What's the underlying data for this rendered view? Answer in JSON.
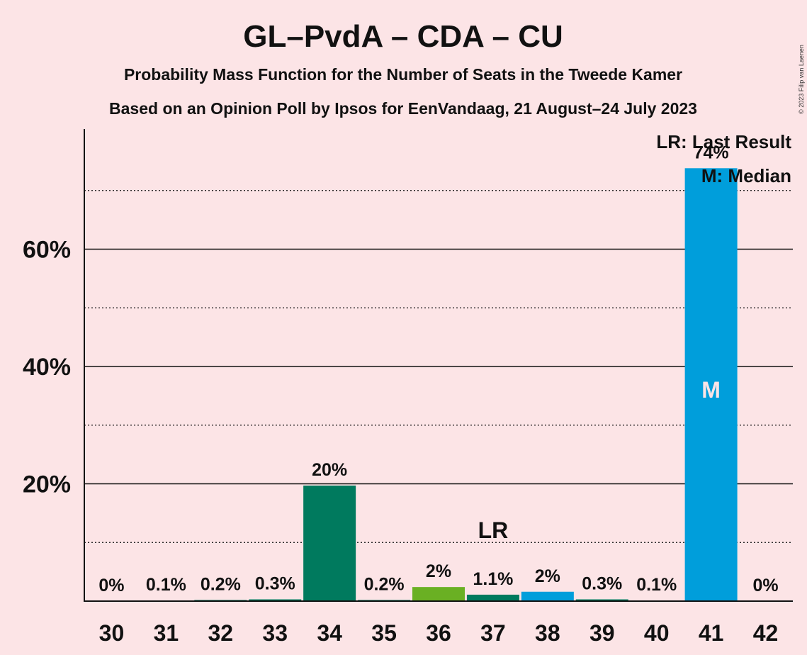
{
  "title": "GL–PvdA – CDA – CU",
  "subtitle1": "Probability Mass Function for the Number of Seats in the Tweede Kamer",
  "subtitle2": "Based on an Opinion Poll by Ipsos for EenVandaag, 21 August–24 July 2023",
  "copyright": "© 2023 Filip van Laenen",
  "legend": {
    "lr": "LR: Last Result",
    "m": "M: Median"
  },
  "markers": {
    "lr_label": "LR",
    "median_label": "M"
  },
  "colors": {
    "background": "#fce4e6",
    "gl_pvda": "#007a5e",
    "cda": "#6ab023",
    "cu": "#009edb"
  },
  "chart_data": {
    "type": "bar",
    "title": "GL–PvdA – CDA – CU",
    "xlabel": "",
    "ylabel": "",
    "ylim": [
      0,
      80
    ],
    "yticks": [
      20,
      40,
      60
    ],
    "ytick_labels": [
      "20%",
      "40%",
      "60%"
    ],
    "grid_minor": [
      10,
      30,
      50,
      70
    ],
    "categories": [
      "30",
      "31",
      "32",
      "33",
      "34",
      "35",
      "36",
      "37",
      "38",
      "39",
      "40",
      "41",
      "42"
    ],
    "values": [
      0,
      0.1,
      0.2,
      0.3,
      19.7,
      0.2,
      2.4,
      1.1,
      1.6,
      0.3,
      0.1,
      73.8,
      0
    ],
    "labels": [
      "0%",
      "0.1%",
      "0.2%",
      "0.3%",
      "20%",
      "0.2%",
      "2%",
      "1.1%",
      "2%",
      "0.3%",
      "0.1%",
      "74%",
      "0%"
    ],
    "bar_colors": [
      "#007a5e",
      "#007a5e",
      "#007a5e",
      "#007a5e",
      "#007a5e",
      "#007a5e",
      "#6ab023",
      "#007a5e",
      "#009edb",
      "#007a5e",
      "#009edb",
      "#009edb",
      "#007a5e"
    ],
    "last_result_seat": "37",
    "median_seat": "41",
    "legend_position": "top-right"
  }
}
